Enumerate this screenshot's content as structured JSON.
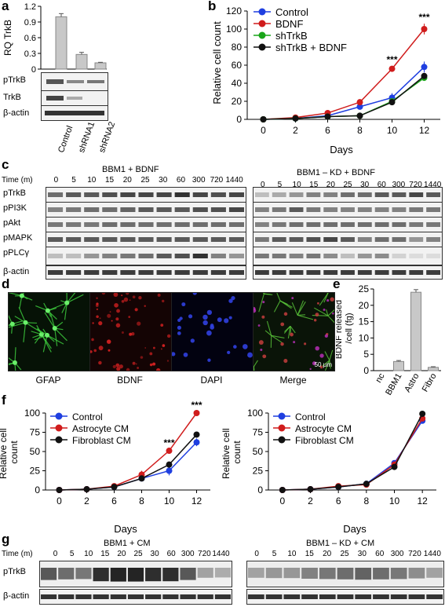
{
  "panel_labels": {
    "a": "a",
    "b": "b",
    "c": "c",
    "d": "d",
    "e": "e",
    "f": "f",
    "g": "g"
  },
  "panel_a": {
    "ylabel": "RQ TrkB",
    "yticks": [
      "0",
      "0.3",
      "0.6",
      "0.9",
      "1.2"
    ],
    "blot_rows": [
      "pTrkB",
      "TrkB",
      "β-actin"
    ],
    "lanes": [
      "Control",
      "shRNA1",
      "shRNA2"
    ]
  },
  "panel_b": {
    "ylabel": "Relative cell count",
    "xlabel": "Days",
    "yticks": [
      "0",
      "20",
      "40",
      "60",
      "80",
      "100",
      "120"
    ],
    "xticks": [
      "0",
      "2",
      "6",
      "8",
      "10",
      "12"
    ],
    "legend": [
      "Control",
      "BDNF",
      "shTrkB",
      "shTrkB + BDNF"
    ],
    "stars": "***"
  },
  "panel_c": {
    "left_title": "BBM1 + BDNF",
    "right_title": "BBM1 – KD + BDNF",
    "time_label": "Time (m)",
    "left_times": [
      "0",
      "5",
      "10",
      "15",
      "20",
      "25",
      "30",
      "60",
      "300",
      "720",
      "1440"
    ],
    "right_times": [
      "0",
      "5",
      "10",
      "15",
      "20",
      "25",
      "30",
      "60",
      "300",
      "720",
      "1440"
    ],
    "rows": [
      "pTrkB",
      "pPI3K",
      "pAkt",
      "pMAPK",
      "pPLCγ",
      "β-actin"
    ]
  },
  "panel_d": {
    "labels": [
      "GFAP",
      "BDNF",
      "DAPI",
      "Merge"
    ],
    "scale": "50 μm"
  },
  "panel_e": {
    "ylabel": "BDNF released /cell (fg)",
    "yticks": [
      "0",
      "5",
      "10",
      "15",
      "20",
      "25"
    ],
    "categories": [
      "nc",
      "BBM1",
      "Astro",
      "Fibro"
    ]
  },
  "panel_f": {
    "ylabel": "Relative cell count",
    "xlabel": "Days",
    "yticks": [
      "0",
      "25",
      "50",
      "75",
      "100"
    ],
    "xticks": [
      "0",
      "2",
      "6",
      "8",
      "10",
      "12"
    ],
    "legend": [
      "Control",
      "Astrocyte CM",
      "Fibroblast CM"
    ],
    "stars": "***"
  },
  "panel_g": {
    "left_title": "BBM1 + CM",
    "right_title": "BBM1 – KD + CM",
    "time_label": "Time (m)",
    "left_times": [
      "0",
      "5",
      "10",
      "15",
      "20",
      "25",
      "30",
      "60",
      "300",
      "720",
      "1440"
    ],
    "right_times": [
      "0",
      "5",
      "10",
      "15",
      "20",
      "25",
      "30",
      "60",
      "300",
      "720",
      "1440"
    ],
    "rows": [
      "pTrkB",
      "β-actin"
    ]
  },
  "colors": {
    "control": "#1f3fe0",
    "treat": "#d01c1c",
    "sh": "#1aa51a",
    "shb": "#111111"
  },
  "chart_data": [
    {
      "type": "bar",
      "panel": "a",
      "categories": [
        "Control",
        "shRNA1",
        "shRNA2"
      ],
      "values": [
        1.0,
        0.28,
        0.12
      ],
      "errors": [
        0.06,
        0.04,
        0.01
      ],
      "ylim": [
        0,
        1.2
      ],
      "ylabel": "RQ TrkB",
      "xlabel": ""
    },
    {
      "type": "line",
      "panel": "b",
      "x": [
        0,
        2,
        6,
        8,
        10,
        12
      ],
      "xlabel": "Days",
      "ylabel": "Relative cell count",
      "ylim": [
        0,
        120
      ],
      "series": [
        {
          "name": "Control",
          "values": [
            0,
            1,
            4,
            14,
            24,
            58
          ],
          "errors": [
            0,
            1,
            1,
            2,
            5,
            6
          ]
        },
        {
          "name": "BDNF",
          "values": [
            0,
            2,
            7,
            19,
            56,
            100
          ],
          "errors": [
            0,
            1,
            1,
            2,
            3,
            6
          ]
        },
        {
          "name": "shTrkB",
          "values": [
            0,
            1,
            3,
            4,
            20,
            46
          ],
          "errors": [
            0,
            0,
            1,
            1,
            2,
            3
          ]
        },
        {
          "name": "shTrkB + BDNF",
          "values": [
            0,
            1,
            3,
            4,
            19,
            48
          ],
          "errors": [
            0,
            0,
            1,
            1,
            2,
            3
          ]
        }
      ],
      "significance": [
        {
          "x": 10,
          "label": "***"
        },
        {
          "x": 12,
          "label": "***"
        }
      ]
    },
    {
      "type": "bar",
      "panel": "e",
      "categories": [
        "nc",
        "BBM1",
        "Astro",
        "Fibro"
      ],
      "values": [
        0,
        2.8,
        24,
        1.0
      ],
      "errors": [
        0,
        0.3,
        0.8,
        0.2
      ],
      "ylim": [
        0,
        25
      ],
      "ylabel": "BDNF released /cell (fg)",
      "xlabel": ""
    },
    {
      "type": "line",
      "panel": "f-left",
      "x": [
        0,
        2,
        6,
        8,
        10,
        12
      ],
      "xlabel": "Days",
      "ylabel": "Relative cell count",
      "ylim": [
        0,
        100
      ],
      "series": [
        {
          "name": "Control",
          "values": [
            0,
            1,
            4,
            15,
            25,
            62
          ],
          "errors": [
            0,
            1,
            1,
            3,
            6,
            5
          ]
        },
        {
          "name": "Astrocyte CM",
          "values": [
            0,
            1,
            5,
            20,
            51,
            100
          ],
          "errors": [
            0,
            1,
            1,
            5,
            2,
            2
          ]
        },
        {
          "name": "Fibroblast CM",
          "values": [
            0,
            1,
            4,
            15,
            33,
            72
          ],
          "errors": [
            0,
            0,
            1,
            2,
            3,
            3
          ]
        }
      ],
      "significance": [
        {
          "x": 10,
          "label": "***"
        },
        {
          "x": 12,
          "label": "***"
        }
      ]
    },
    {
      "type": "line",
      "panel": "f-right",
      "x": [
        0,
        2,
        6,
        8,
        10,
        12
      ],
      "xlabel": "Days",
      "ylabel": "Relative cell count",
      "ylim": [
        0,
        100
      ],
      "series": [
        {
          "name": "Control",
          "values": [
            0,
            1,
            4,
            8,
            35,
            90
          ],
          "errors": [
            0,
            1,
            1,
            2,
            3,
            3
          ]
        },
        {
          "name": "Astrocyte CM",
          "values": [
            0,
            1,
            5,
            7,
            33,
            93
          ],
          "errors": [
            0,
            1,
            1,
            2,
            3,
            3
          ]
        },
        {
          "name": "Fibroblast CM",
          "values": [
            0,
            1,
            4,
            8,
            30,
            99
          ],
          "errors": [
            0,
            1,
            1,
            2,
            3,
            2
          ]
        }
      ]
    }
  ]
}
